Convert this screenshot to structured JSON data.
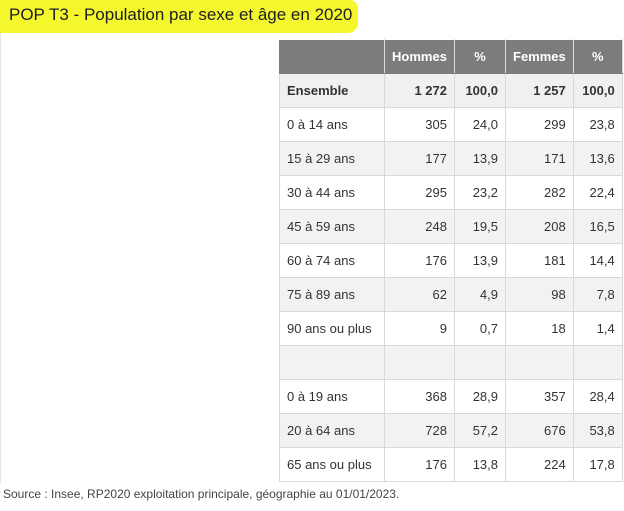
{
  "title": "POP T3 - Population par sexe et âge en 2020",
  "table": {
    "headers": [
      "",
      "Hommes",
      "%",
      "Femmes",
      "%"
    ],
    "total": [
      "Ensemble",
      "1 272",
      "100,0",
      "1 257",
      "100,0"
    ],
    "rows": [
      [
        "0 à 14 ans",
        "305",
        "24,0",
        "299",
        "23,8"
      ],
      [
        "15 à 29 ans",
        "177",
        "13,9",
        "171",
        "13,6"
      ],
      [
        "30 à 44 ans",
        "295",
        "23,2",
        "282",
        "22,4"
      ],
      [
        "45 à 59 ans",
        "248",
        "19,5",
        "208",
        "16,5"
      ],
      [
        "60 à 74 ans",
        "176",
        "13,9",
        "181",
        "14,4"
      ],
      [
        "75 à 89 ans",
        "62",
        "4,9",
        "98",
        "7,8"
      ],
      [
        "90 ans ou plus",
        "9",
        "0,7",
        "18",
        "1,4"
      ],
      [
        "",
        "",
        "",
        "",
        ""
      ],
      [
        "0 à 19 ans",
        "368",
        "28,9",
        "357",
        "28,4"
      ],
      [
        "20 à 64 ans",
        "728",
        "57,2",
        "676",
        "53,8"
      ],
      [
        "65 ans ou plus",
        "176",
        "13,8",
        "224",
        "17,8"
      ]
    ]
  },
  "source": "Source : Insee, RP2020 exploitation principale, géographie au 01/01/2023.",
  "colors": {
    "highlight": "#f4f72e",
    "header_bg": "#7c7c7c",
    "row_alt_bg": "#f2f2f2"
  }
}
